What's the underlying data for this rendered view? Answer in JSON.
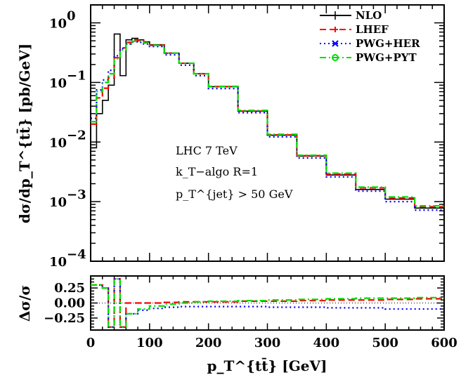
{
  "chart_data": [
    {
      "type": "line",
      "panel": "main",
      "xlabel": "p_T^{tt̄} [GeV]",
      "ylabel": "dσ/dp_T^{tt̄} [pb/GeV]",
      "xlim": [
        0,
        600
      ],
      "ylim": [
        0.0001,
        2
      ],
      "yscale": "log",
      "x_ticks": [
        "0",
        "100",
        "200",
        "300",
        "400",
        "500",
        "600"
      ],
      "y_ticks": [
        {
          "base": "10",
          "exp": "0",
          "value": 1
        },
        {
          "base": "10",
          "exp": "−1",
          "value": 0.1
        },
        {
          "base": "10",
          "exp": "−2",
          "value": 0.01
        },
        {
          "base": "10",
          "exp": "−3",
          "value": 0.001
        },
        {
          "base": "10",
          "exp": "−4",
          "value": 0.0001
        }
      ],
      "legend_position": "top-right",
      "annotations": [
        "LHC 7 TeV",
        "k_T−algo R=1",
        "p_T^{jet} > 50 GeV"
      ],
      "x": [
        0,
        10,
        20,
        30,
        40,
        50,
        60,
        70,
        80,
        90,
        100,
        125,
        150,
        175,
        200,
        250,
        300,
        350,
        400,
        450,
        500,
        550,
        600
      ],
      "series": [
        {
          "name": "NLO",
          "color": "#000000",
          "style": "solid",
          "values": [
            0.008,
            0.03,
            0.05,
            0.09,
            0.65,
            0.13,
            0.52,
            0.55,
            0.52,
            0.48,
            0.43,
            0.31,
            0.21,
            0.14,
            0.085,
            0.033,
            0.013,
            0.0058,
            0.0028,
            0.0016,
            0.0011,
            0.00078,
            0.00062
          ]
        },
        {
          "name": "LHEF",
          "color": "#ff0000",
          "style": "dashed",
          "values": [
            0.02,
            0.055,
            0.08,
            0.12,
            0.26,
            0.38,
            0.47,
            0.52,
            0.51,
            0.47,
            0.42,
            0.31,
            0.21,
            0.14,
            0.085,
            0.033,
            0.0132,
            0.0059,
            0.0029,
            0.0017,
            0.00115,
            0.00082,
            0.00066
          ]
        },
        {
          "name": "PWG+HER",
          "color": "#0000ff",
          "style": "dotted",
          "values": [
            0.025,
            0.075,
            0.11,
            0.16,
            0.28,
            0.37,
            0.44,
            0.48,
            0.47,
            0.44,
            0.4,
            0.29,
            0.195,
            0.13,
            0.079,
            0.031,
            0.0122,
            0.0054,
            0.0026,
            0.0015,
            0.001,
            0.00072,
            0.00052
          ]
        },
        {
          "name": "PWG+PYT",
          "color": "#00dd00",
          "style": "dashdot",
          "values": [
            0.022,
            0.07,
            0.1,
            0.14,
            0.25,
            0.35,
            0.44,
            0.49,
            0.49,
            0.46,
            0.42,
            0.31,
            0.21,
            0.14,
            0.086,
            0.034,
            0.0135,
            0.006,
            0.003,
            0.00175,
            0.0012,
            0.00085,
            0.00068
          ]
        }
      ]
    },
    {
      "type": "line",
      "panel": "ratio",
      "ylabel": "Δσ/σ",
      "xlim": [
        0,
        600
      ],
      "ylim": [
        -0.45,
        0.45
      ],
      "y_ticks": [
        "0.25",
        "0.00",
        "−0.25"
      ],
      "x": [
        0,
        10,
        20,
        30,
        40,
        50,
        60,
        80,
        100,
        125,
        150,
        175,
        200,
        250,
        300,
        350,
        400,
        450,
        500,
        550,
        600
      ],
      "series": [
        {
          "name": "LHEF",
          "color": "#ff0000",
          "style": "dashed",
          "values": [
            0.3,
            0.3,
            0.25,
            -0.4,
            0.4,
            -0.4,
            0.0,
            0.0,
            0.0,
            0.01,
            0.02,
            0.02,
            0.02,
            0.03,
            0.03,
            0.04,
            0.05,
            0.05,
            0.06,
            0.07,
            0.07
          ]
        },
        {
          "name": "PWG+HER",
          "color": "#0000ff",
          "style": "dotted",
          "values": [
            0.3,
            0.3,
            0.25,
            -0.4,
            0.4,
            -0.4,
            -0.18,
            -0.12,
            -0.09,
            -0.07,
            -0.06,
            -0.06,
            -0.06,
            -0.06,
            -0.07,
            -0.07,
            -0.08,
            -0.08,
            -0.1,
            -0.1,
            -0.12
          ]
        },
        {
          "name": "PWG+PYT",
          "color": "#00dd00",
          "style": "dashdot",
          "values": [
            0.3,
            0.3,
            0.25,
            -0.4,
            0.4,
            -0.4,
            -0.18,
            -0.1,
            -0.05,
            -0.02,
            0.0,
            0.02,
            0.03,
            0.04,
            0.05,
            0.06,
            0.07,
            0.08,
            0.08,
            0.09,
            0.1
          ]
        }
      ]
    }
  ]
}
